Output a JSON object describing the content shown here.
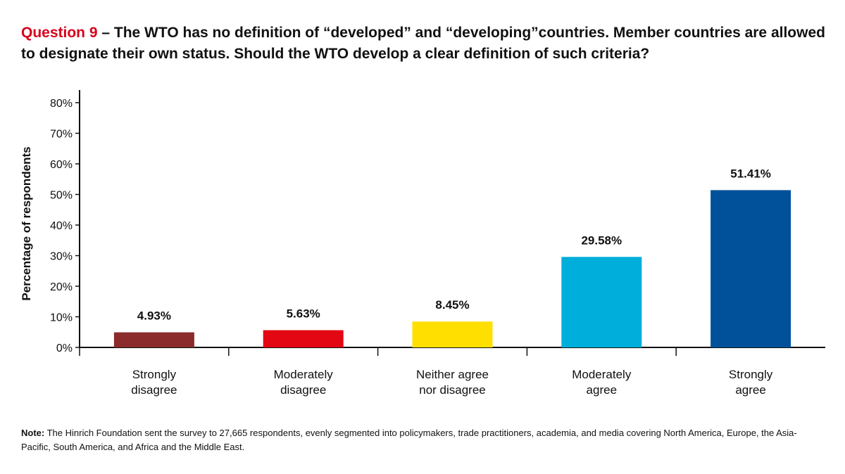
{
  "title": {
    "question": "Question 9",
    "text": " – The WTO has no definition of “developed” and “developing”countries. Member countries are allowed to designate their own status. Should the WTO develop a clear definition of such criteria?"
  },
  "note": {
    "label": "Note:",
    "text": " The Hinrich Foundation sent the survey to 27,665 respondents, evenly segmented into policymakers, trade practitioners, academia, and media covering North America, Europe, the Asia-Pacific, South America, and Africa and the Middle East."
  },
  "chart_data": {
    "type": "bar",
    "ylabel": "Percentage of respondents",
    "ylim": [
      0,
      80
    ],
    "yticks": [
      0,
      10,
      20,
      30,
      40,
      50,
      60,
      70,
      80
    ],
    "ytick_suffix": "%",
    "grid": false,
    "categories": [
      [
        "Strongly",
        "disagree"
      ],
      [
        "Moderately",
        "disagree"
      ],
      [
        "Neither agree",
        "nor disagree"
      ],
      [
        "Moderately",
        "agree"
      ],
      [
        "Strongly",
        "agree"
      ]
    ],
    "values": [
      4.93,
      5.63,
      8.45,
      29.58,
      51.41
    ],
    "value_labels": [
      "4.93%",
      "5.63%",
      "8.45%",
      "29.58%",
      "51.41%"
    ],
    "colors": [
      "#8b2b2b",
      "#e30613",
      "#ffdf00",
      "#00aedb",
      "#00519a"
    ]
  }
}
